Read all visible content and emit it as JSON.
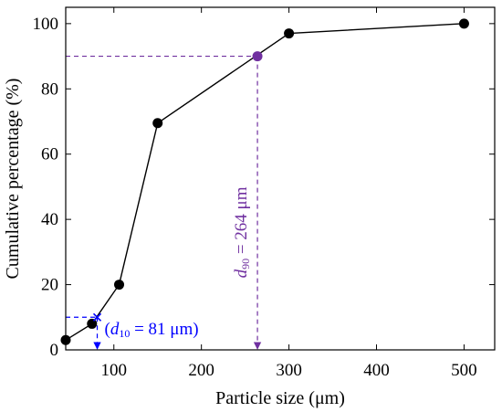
{
  "chart_data": {
    "type": "line",
    "xlabel": "Particle size (μm)",
    "ylabel": "Cumulative percentage (%)",
    "xlim": [
      45,
      535
    ],
    "ylim": [
      0,
      105
    ],
    "xticks": [
      100,
      200,
      300,
      400,
      500
    ],
    "yticks": [
      0,
      20,
      40,
      60,
      80,
      100
    ],
    "grid": false,
    "series": [
      {
        "x": [
          45,
          75,
          106,
          150,
          300,
          500
        ],
        "y": [
          3,
          8,
          20,
          69.5,
          97,
          100
        ],
        "color": "#000000",
        "marker": "circle"
      }
    ],
    "annotations": [
      {
        "id": "d10",
        "x": 81,
        "y": 10,
        "color": "#0000ff",
        "label_prefix": "(",
        "label_var": "d",
        "label_sub": "10",
        "label_rest": " = 81 μm)"
      },
      {
        "id": "d90",
        "x": 264,
        "y": 90,
        "color": "#7030a0",
        "label_var": "d",
        "label_sub": "90",
        "label_rest": " = 264 μm"
      }
    ]
  }
}
